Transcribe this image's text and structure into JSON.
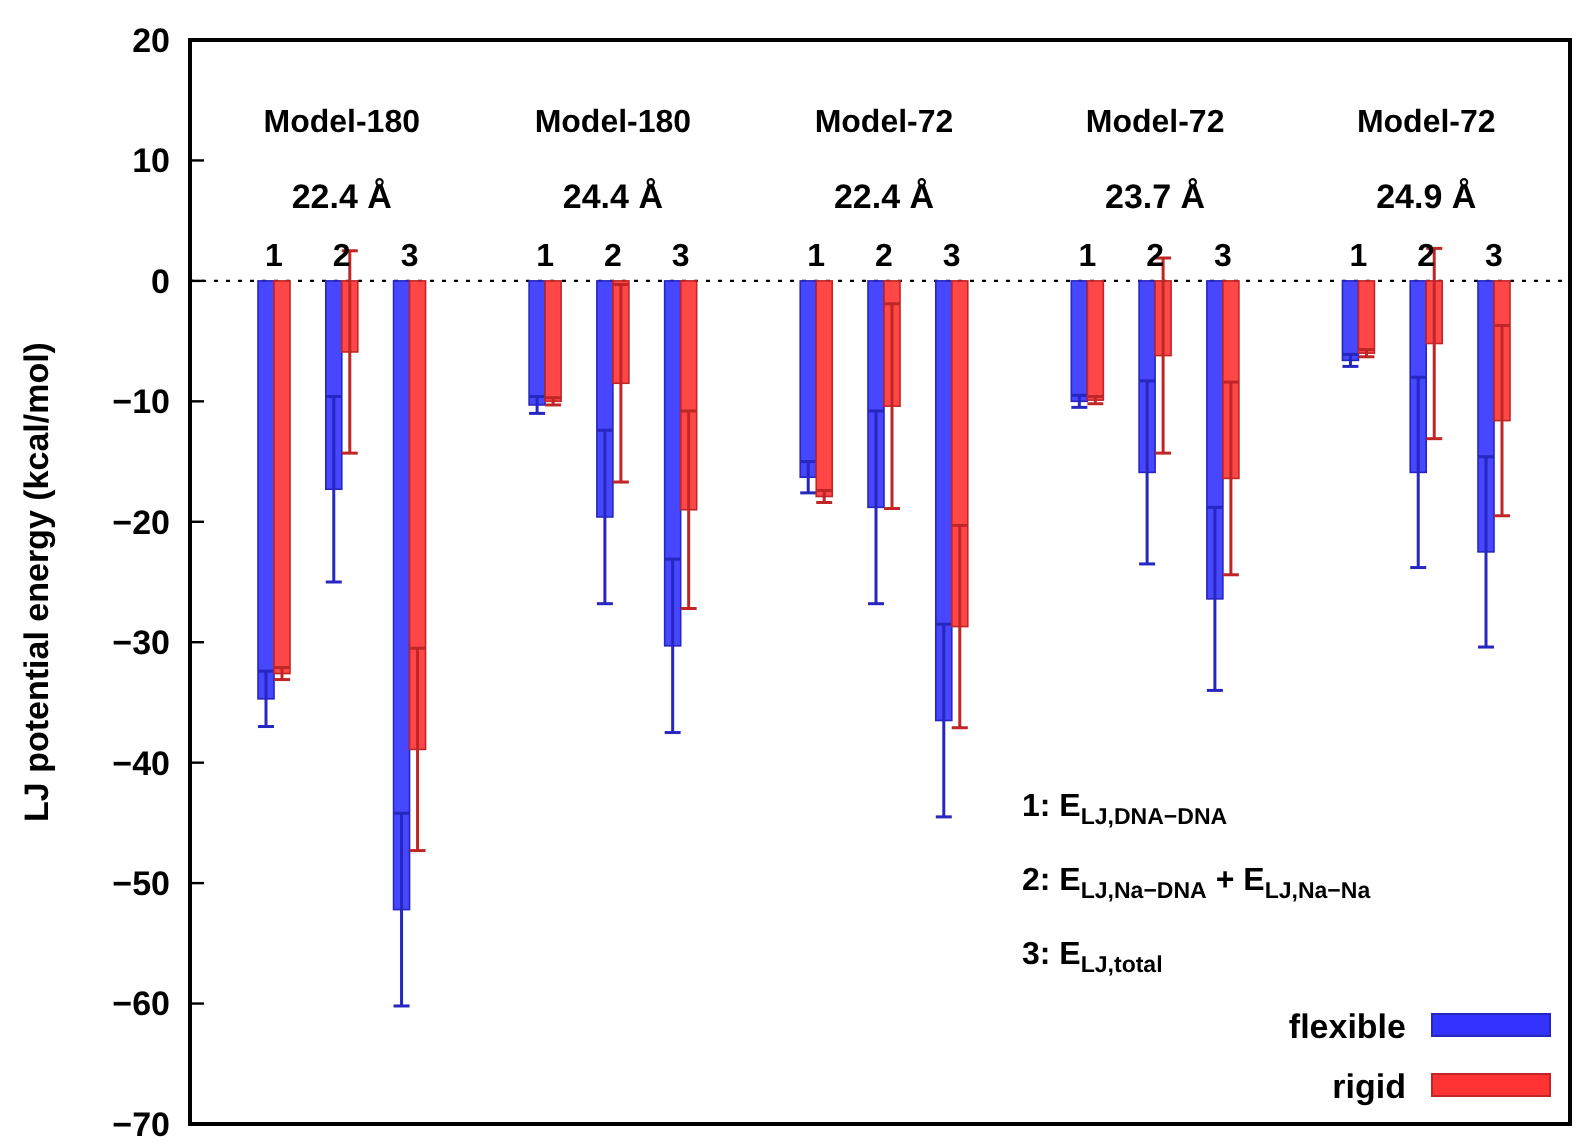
{
  "chart_data": {
    "type": "bar",
    "ylabel": "LJ potential energy (kcal/mol)",
    "categories": [
      "1",
      "2",
      "3",
      null,
      "1",
      "2",
      "3",
      null,
      "1",
      "2",
      "3",
      null,
      "1",
      "2",
      "3",
      null,
      "1",
      "2",
      "3"
    ],
    "series": [
      {
        "name": "flexible",
        "color": "#3333ff",
        "values": [
          -34.7,
          -17.3,
          -52.2,
          null,
          -10.3,
          -19.6,
          -30.3,
          null,
          -16.3,
          -18.8,
          -36.5,
          null,
          -10.0,
          -15.9,
          -26.4,
          null,
          -6.6,
          -15.9,
          -22.5
        ],
        "errors": [
          2.3,
          7.7,
          8.0,
          null,
          0.7,
          7.2,
          7.2,
          null,
          1.3,
          8.0,
          8.0,
          null,
          0.5,
          7.6,
          7.6,
          null,
          0.5,
          7.9,
          7.9
        ]
      },
      {
        "name": "rigid",
        "color": "#ff3333",
        "values": [
          -32.6,
          -5.9,
          -38.9,
          null,
          -10.0,
          -8.5,
          -19.0,
          null,
          -17.9,
          -10.4,
          -28.7,
          null,
          -9.9,
          -6.2,
          -16.4,
          null,
          -6.0,
          -5.2,
          -11.6
        ],
        "errors": [
          0.5,
          8.4,
          8.4,
          null,
          0.3,
          8.2,
          8.2,
          null,
          0.5,
          8.5,
          8.4,
          null,
          0.3,
          8.1,
          8.0,
          null,
          0.3,
          7.9,
          7.9
        ]
      }
    ],
    "ylim": [
      -70,
      20
    ],
    "yticks": [
      -70,
      -60,
      -50,
      -40,
      -30,
      -20,
      -10,
      0,
      10,
      20
    ],
    "grid": false,
    "legend": "bottom right",
    "ref_lines": [
      {
        "axis": "y",
        "value": 0,
        "color": "#000000",
        "line_style": "dotted"
      }
    ],
    "annotations": [
      "Model-180",
      "22.4 Å",
      "Model-180",
      "24.4 Å",
      "Model-72",
      "22.4 Å",
      "Model-72",
      "23.7 Å",
      "Model-72",
      "24.9 Å",
      "1: E$_{LJ,DNA−DNA}$",
      "2: E$_{LJ,Na−DNA}$ + E$_{LJ,Na−Na}$",
      "3: E$_{LJ,total}$"
    ]
  }
}
